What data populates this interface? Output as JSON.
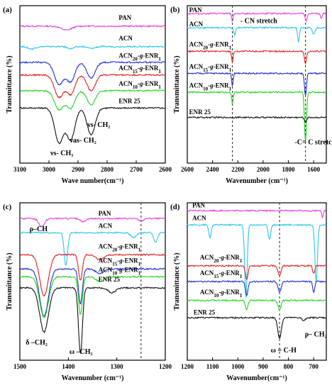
{
  "chart_data": [
    {
      "type": "line",
      "panel": "(a)",
      "xlabel": "Wave number(cm⁻¹)",
      "ylabel": "Transmittance (%)",
      "xlim": [
        3100,
        2600
      ],
      "xticks": [
        "3100",
        "3000",
        "2900",
        "2800",
        "2700",
        "2600"
      ],
      "xtick_values": [
        3100,
        3000,
        2900,
        2800,
        2700,
        2600
      ],
      "ylim": [
        0,
        100
      ],
      "grid": false,
      "legend": "inline labels",
      "series": [
        {
          "name": "PAN",
          "color": "#e040e0",
          "base": 87,
          "labelX": 2760,
          "labelOffset": 4,
          "dips": [
            {
              "c": 2940,
              "d": 2.5,
              "w": 18
            }
          ]
        },
        {
          "name": "ACN",
          "color": "#29c7e6",
          "base": 74,
          "labelX": 2760,
          "labelOffset": 4,
          "dips": [
            {
              "c": 3060,
              "d": 1.5,
              "w": 12
            },
            {
              "c": 2925,
              "d": 1.2,
              "w": 12
            },
            {
              "c": 2855,
              "d": 1.2,
              "w": 12
            }
          ]
        },
        {
          "name": "ACN20-g-ENR1",
          "color": "#1f2fd0",
          "base": 64,
          "labelX": 2760,
          "labelOffset": 3,
          "dips": [
            {
              "c": 2965,
              "d": 14,
              "w": 16
            },
            {
              "c": 2925,
              "d": 12,
              "w": 14
            },
            {
              "c": 2855,
              "d": 10,
              "w": 14
            }
          ]
        },
        {
          "name": "ACN15-g-ENR1",
          "color": "#e02020",
          "base": 56,
          "labelX": 2760,
          "labelOffset": 3,
          "dips": [
            {
              "c": 2965,
              "d": 14,
              "w": 16
            },
            {
              "c": 2925,
              "d": 12,
              "w": 14
            },
            {
              "c": 2855,
              "d": 10,
              "w": 14
            }
          ]
        },
        {
          "name": "ACN10-g-ENR1",
          "color": "#21d321",
          "base": 46,
          "labelX": 2760,
          "labelOffset": 3,
          "dips": [
            {
              "c": 2965,
              "d": 12,
              "w": 16
            },
            {
              "c": 2925,
              "d": 11,
              "w": 14
            },
            {
              "c": 2855,
              "d": 9,
              "w": 14
            }
          ]
        },
        {
          "name": "ENR 25",
          "color": "#111111",
          "base": 35,
          "labelX": 2760,
          "labelOffset": 3,
          "dips": [
            {
              "c": 2965,
              "d": 22,
              "w": 15
            },
            {
              "c": 2925,
              "d": 20,
              "w": 14
            },
            {
              "c": 2855,
              "d": 17,
              "w": 14
            }
          ]
        }
      ],
      "annotations": [
        {
          "text": "νs- CH₂",
          "x": 2868,
          "y": 23
        },
        {
          "text": "νas- CH₂",
          "x": 2928,
          "y": 13
        },
        {
          "text": "νs- CH₃",
          "x": 2995,
          "y": 5
        }
      ],
      "vlines": []
    },
    {
      "type": "line",
      "panel": "(b)",
      "xlabel": "Wavenumber (cm⁻¹)",
      "ylabel": "Transmittance (%)",
      "xlim": [
        2600,
        1500
      ],
      "xticks": [
        "2600",
        "2400",
        "2200",
        "2000",
        "1800",
        "1600"
      ],
      "xtick_values": [
        2600,
        2400,
        2200,
        2000,
        1800,
        1600
      ],
      "ylim": [
        0,
        100
      ],
      "grid": false,
      "legend": "inline labels",
      "series": [
        {
          "name": "PAN",
          "color": "#e040e0",
          "base": 95,
          "labelX": 2585,
          "labelOffset": 1,
          "dips": [
            {
              "c": 2243,
              "d": 5,
              "w": 6
            },
            {
              "c": 1660,
              "d": 5,
              "w": 8
            },
            {
              "c": 1540,
              "d": 3,
              "w": 6
            }
          ]
        },
        {
          "name": "ACN",
          "color": "#29c7e6",
          "base": 86,
          "labelX": 2585,
          "labelOffset": 1,
          "dips": [
            {
              "c": 2225,
              "d": 5,
              "w": 6
            },
            {
              "c": 1720,
              "d": 9,
              "w": 7
            },
            {
              "c": 1600,
              "d": 4,
              "w": 10
            }
          ]
        },
        {
          "name": "ACN20-g-ENR1",
          "color": "#e02020",
          "base": 71,
          "labelX": 2585,
          "labelOffset": 3,
          "dips": [
            {
              "c": 2243,
              "d": 7,
              "w": 6
            },
            {
              "c": 1665,
              "d": 8,
              "w": 8
            }
          ]
        },
        {
          "name": "ACN15-g-ENR1",
          "color": "#1f2fd0",
          "base": 57,
          "labelX": 2585,
          "labelOffset": 3,
          "dips": [
            {
              "c": 2243,
              "d": 8,
              "w": 6
            },
            {
              "c": 1665,
              "d": 14,
              "w": 8
            }
          ]
        },
        {
          "name": "ACN10-g-ENR1",
          "color": "#21d321",
          "base": 45,
          "labelX": 2585,
          "labelOffset": 3,
          "dips": [
            {
              "c": 2243,
              "d": 7,
              "w": 6
            },
            {
              "c": 1665,
              "d": 32,
              "w": 8
            }
          ]
        },
        {
          "name": "ENR 25",
          "color": "#111111",
          "base": 29,
          "labelX": 2585,
          "labelOffset": 2,
          "dips": [
            {
              "c": 1665,
              "d": 3,
              "w": 8
            }
          ]
        }
      ],
      "annotations": [
        {
          "text": "- CN stretch",
          "x": 2180,
          "y": 89
        },
        {
          "text": "-C= C stretching",
          "x": 1750,
          "y": 12
        }
      ],
      "vlines": [
        2243,
        1665
      ]
    },
    {
      "type": "line",
      "panel": "(c)",
      "xlabel": "Wavenumber (cm⁻¹)",
      "ylabel": "Transmittance (%)",
      "xlim": [
        1500,
        1200
      ],
      "xticks": [
        "1500",
        "1400",
        "1300",
        "1200"
      ],
      "xtick_values": [
        1500,
        1400,
        1300,
        1200
      ],
      "ylim": [
        0,
        100
      ],
      "grid": false,
      "legend": "inline labels",
      "series": [
        {
          "name": "PAN",
          "color": "#e040e0",
          "base": 90,
          "labelX": 1338,
          "labelOffset": 2,
          "dips": [
            {
              "c": 1455,
              "d": 5,
              "w": 6
            },
            {
              "c": 1370,
              "d": 2,
              "w": 5
            },
            {
              "c": 1250,
              "d": 1.5,
              "w": 5
            }
          ]
        },
        {
          "name": "ACN",
          "color": "#29c7e6",
          "base": 81,
          "labelX": 1338,
          "labelOffset": 3,
          "dips": [
            {
              "c": 1405,
              "d": 21,
              "w": 3.5
            },
            {
              "c": 1265,
              "d": 3,
              "w": 6
            },
            {
              "c": 1220,
              "d": 6,
              "w": 4
            }
          ]
        },
        {
          "name": "ACN20-g-ENR1",
          "color": "#e02020",
          "base": 67,
          "labelX": 1338,
          "labelOffset": 4,
          "dips": [
            {
              "c": 1450,
              "d": 26,
              "w": 9
            },
            {
              "c": 1375,
              "d": 16,
              "w": 4
            },
            {
              "c": 1335,
              "d": 3,
              "w": 8
            }
          ]
        },
        {
          "name": "ACN15-g-ENR1",
          "color": "#1f2fd0",
          "base": 58,
          "labelX": 1338,
          "labelOffset": 4,
          "dips": [
            {
              "c": 1450,
              "d": 30,
              "w": 9
            },
            {
              "c": 1375,
              "d": 22,
              "w": 4
            },
            {
              "c": 1335,
              "d": 3,
              "w": 8
            }
          ]
        },
        {
          "name": "ACN10-g-ENR1",
          "color": "#21d321",
          "base": 53,
          "labelX": 1338,
          "labelOffset": 3,
          "dips": [
            {
              "c": 1450,
              "d": 26,
              "w": 9
            },
            {
              "c": 1375,
              "d": 24,
              "w": 4
            },
            {
              "c": 1335,
              "d": 3,
              "w": 8
            }
          ]
        },
        {
          "name": "ENR 25",
          "color": "#111111",
          "base": 46,
          "labelX": 1338,
          "labelOffset": 4,
          "dips": [
            {
              "c": 1450,
              "d": 28,
              "w": 9
            },
            {
              "c": 1375,
              "d": 42,
              "w": 4
            },
            {
              "c": 1310,
              "d": 3,
              "w": 8
            }
          ]
        }
      ],
      "annotations": [
        {
          "text": "ρ–CH",
          "x": 1480,
          "y": 82
        },
        {
          "text": "δ –CH₂",
          "x": 1488,
          "y": 10
        },
        {
          "text": "ω –CH₂",
          "x": 1398,
          "y": 4
        }
      ],
      "vlines": [
        1250
      ]
    },
    {
      "type": "line",
      "panel": "(d)",
      "xlabel": "Wavenumber(cm⁻¹)",
      "ylabel": "Transmittance (%)",
      "xlim": [
        1200,
        650
      ],
      "xticks": [
        "1200",
        "1100",
        "1000",
        "900",
        "800",
        "700"
      ],
      "xtick_values": [
        1200,
        1100,
        1000,
        900,
        800,
        700
      ],
      "ylim": [
        0,
        100
      ],
      "grid": false,
      "legend": "inline labels",
      "series": [
        {
          "name": "PAN",
          "color": "#e040e0",
          "base": 95,
          "labelX": 1180,
          "labelOffset": 2,
          "dips": [
            {
              "c": 665,
              "d": 4,
              "w": 3
            }
          ]
        },
        {
          "name": "ACN",
          "color": "#29c7e6",
          "base": 86,
          "labelX": 1180,
          "labelOffset": 3,
          "dips": [
            {
              "c": 1110,
              "d": 8,
              "w": 5
            },
            {
              "c": 968,
              "d": 46,
              "w": 5
            },
            {
              "c": 875,
              "d": 9,
              "w": 5
            },
            {
              "c": 690,
              "d": 36,
              "w": 5
            }
          ]
        },
        {
          "name": "ACN20-g-ENR1",
          "color": "#e02020",
          "base": 60,
          "labelX": 1150,
          "labelOffset": 4,
          "dips": [
            {
              "c": 965,
              "d": 9,
              "w": 5
            },
            {
              "c": 835,
              "d": 6,
              "w": 6
            },
            {
              "c": 700,
              "d": 5,
              "w": 4
            }
          ]
        },
        {
          "name": "ACN15-g-ENR1",
          "color": "#1f2fd0",
          "base": 50,
          "labelX": 1150,
          "labelOffset": 4,
          "dips": [
            {
              "c": 965,
              "d": 9,
              "w": 5
            },
            {
              "c": 835,
              "d": 7,
              "w": 6
            },
            {
              "c": 700,
              "d": 7,
              "w": 4
            }
          ]
        },
        {
          "name": "ACN10-g-ENR1",
          "color": "#21d321",
          "base": 38,
          "labelX": 1150,
          "labelOffset": 4,
          "dips": [
            {
              "c": 965,
              "d": 6,
              "w": 5
            },
            {
              "c": 835,
              "d": 6,
              "w": 6
            }
          ]
        },
        {
          "name": "ENR 25",
          "color": "#111111",
          "base": 27,
          "labelX": 1175,
          "labelOffset": 2,
          "dips": [
            {
              "c": 835,
              "d": 13,
              "w": 7
            },
            {
              "c": 740,
              "d": 2,
              "w": 6
            }
          ]
        }
      ],
      "annotations": [
        {
          "text": "ω = C-H",
          "x": 870,
          "y": 5
        },
        {
          "text": "ρ– CH₂",
          "x": 735,
          "y": 15
        }
      ],
      "vlines": [
        835
      ]
    }
  ]
}
